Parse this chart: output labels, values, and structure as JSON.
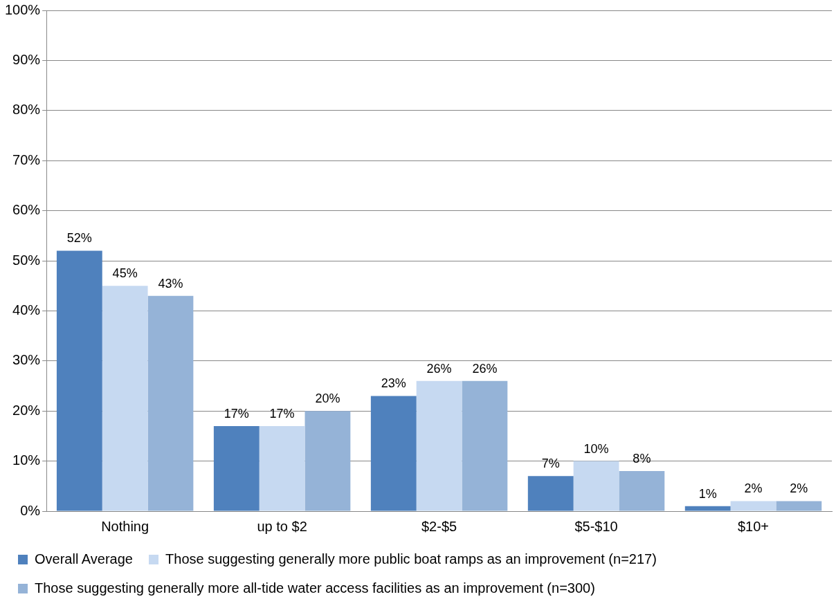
{
  "chart_data": {
    "type": "bar",
    "categories": [
      "Nothing",
      "up to $2",
      "$2-$5",
      "$5-$10",
      "$10+"
    ],
    "series": [
      {
        "name": "Overall Average",
        "color": "#4f81bd",
        "values": [
          52,
          17,
          23,
          7,
          1
        ],
        "value_labels": [
          "52%",
          "17%",
          "23%",
          "7%",
          "1%"
        ]
      },
      {
        "name": "Those suggesting generally more public boat ramps as an improvement (n=217)",
        "color": "#c6d9f1",
        "values": [
          45,
          17,
          26,
          10,
          2
        ],
        "value_labels": [
          "45%",
          "17%",
          "26%",
          "10%",
          "2%"
        ]
      },
      {
        "name": "Those suggesting generally more all-tide water access facilities as an improvement (n=300)",
        "color": "#95b3d7",
        "values": [
          43,
          20,
          26,
          8,
          2
        ],
        "value_labels": [
          "43%",
          "20%",
          "26%",
          "8%",
          "2%"
        ]
      }
    ],
    "ylim": [
      0,
      100
    ],
    "yticks": [
      {
        "value": 0,
        "label": "0%"
      },
      {
        "value": 10,
        "label": "10%"
      },
      {
        "value": 20,
        "label": "20%"
      },
      {
        "value": 30,
        "label": "30%"
      },
      {
        "value": 40,
        "label": "40%"
      },
      {
        "value": 50,
        "label": "50%"
      },
      {
        "value": 60,
        "label": "60%"
      },
      {
        "value": 70,
        "label": "70%"
      },
      {
        "value": 80,
        "label": "80%"
      },
      {
        "value": 90,
        "label": "90%"
      },
      {
        "value": 100,
        "label": "100%"
      }
    ],
    "grid": "y",
    "legend": "bottom"
  }
}
